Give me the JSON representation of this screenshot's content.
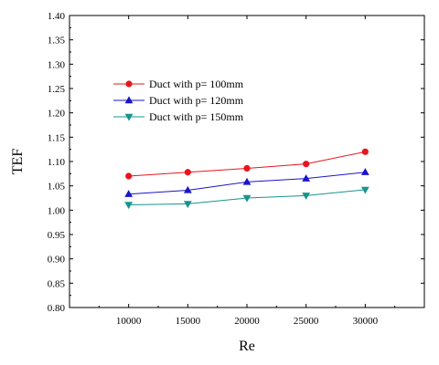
{
  "chart_data": {
    "type": "line",
    "xlabel": "Re",
    "ylabel": "TEF",
    "x": [
      10000,
      15000,
      20000,
      25000,
      30000
    ],
    "x_ticks": [
      "10000",
      "15000",
      "20000",
      "25000",
      "30000"
    ],
    "xlim": [
      5000,
      35000
    ],
    "ylim": [
      0.8,
      1.4
    ],
    "y_ticks": [
      "0.80",
      "0.85",
      "0.90",
      "0.95",
      "1.00",
      "1.05",
      "1.10",
      "1.15",
      "1.20",
      "1.25",
      "1.30",
      "1.35",
      "1.40"
    ],
    "grid": false,
    "legend_position": "upper-left",
    "series": [
      {
        "name": "Duct with p= 100mm",
        "values": [
          1.07,
          1.078,
          1.086,
          1.095,
          1.12
        ],
        "color": "#e8141e",
        "marker": "circle"
      },
      {
        "name": "Duct with p= 120mm",
        "values": [
          1.033,
          1.041,
          1.058,
          1.065,
          1.078
        ],
        "color": "#1a14c8",
        "marker": "triangle-up"
      },
      {
        "name": "Duct with p= 150mm",
        "values": [
          1.011,
          1.013,
          1.025,
          1.03,
          1.042
        ],
        "color": "#17948c",
        "marker": "triangle-down"
      }
    ]
  }
}
